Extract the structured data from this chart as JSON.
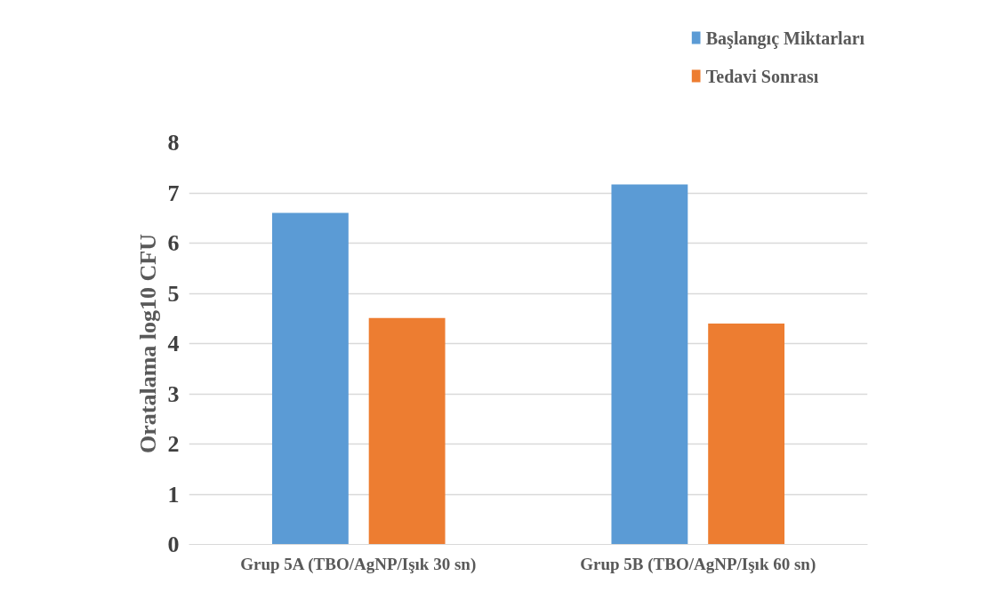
{
  "chart_data": {
    "type": "bar",
    "ylabel": "Oratalama log10 CFU",
    "categories": [
      "Grup 5A (TBO/AgNP/Işık 30 sn)",
      "Grup 5B (TBO/AgNP/Işık 60 sn)"
    ],
    "series": [
      {
        "name": "Başlangıç Miktarları",
        "color": "#5b9bd5",
        "values": [
          6.6,
          7.17
        ]
      },
      {
        "name": "Tedavi Sonrası",
        "color": "#ed7d31",
        "values": [
          4.51,
          4.4
        ]
      }
    ],
    "ylim": [
      0,
      8
    ],
    "yticks": [
      0,
      1,
      2,
      3,
      4,
      5,
      6,
      7,
      8
    ],
    "grid": "y",
    "legend": "top right"
  }
}
